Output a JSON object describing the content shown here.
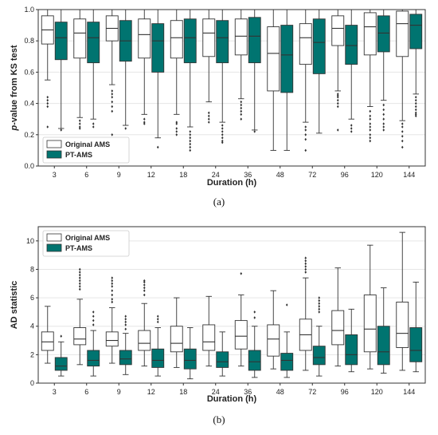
{
  "colors": {
    "original": "#ffffff",
    "pt": "#007470",
    "edge": "#333333",
    "grid": "#e6e6e6"
  },
  "chart_data": [
    {
      "type": "box",
      "panel_label": "(a)",
      "xlabel": "Duration (h)",
      "ylabel_prefix": "p",
      "ylabel_rest": "-value from KS test",
      "ylim": [
        0.0,
        1.0
      ],
      "yticks": [
        0.0,
        0.2,
        0.4,
        0.6,
        0.8,
        1.0
      ],
      "ytick_labels": [
        "0.0",
        "0.2",
        "0.4",
        "0.6",
        "0.8",
        "1.0"
      ],
      "grid": true,
      "legend": "bottom-left",
      "categories": [
        "3",
        "6",
        "9",
        "12",
        "18",
        "24",
        "36",
        "48",
        "72",
        "96",
        "120",
        "144"
      ],
      "series": [
        {
          "name": "Original AMS",
          "boxes": [
            {
              "whislo": 0.55,
              "q1": 0.78,
              "med": 0.87,
              "q3": 0.96,
              "whishi": 1.0,
              "fliers": [
                0.44,
                0.42,
                0.4,
                0.38,
                0.25
              ]
            },
            {
              "whislo": 0.31,
              "q1": 0.69,
              "med": 0.85,
              "q3": 0.94,
              "whishi": 1.0,
              "fliers": [
                0.29,
                0.27,
                0.25,
                0.24
              ]
            },
            {
              "whislo": 0.52,
              "q1": 0.8,
              "med": 0.88,
              "q3": 0.96,
              "whishi": 1.0,
              "fliers": [
                0.48,
                0.46,
                0.44,
                0.41,
                0.38,
                0.35,
                0.2,
                0.17
              ]
            },
            {
              "whislo": 0.33,
              "q1": 0.69,
              "med": 0.84,
              "q3": 0.94,
              "whishi": 1.0,
              "fliers": [
                0.3,
                0.28,
                0.27
              ]
            },
            {
              "whislo": 0.33,
              "q1": 0.69,
              "med": 0.82,
              "q3": 0.93,
              "whishi": 1.0,
              "fliers": [
                0.28,
                0.27,
                0.24,
                0.22,
                0.2
              ]
            },
            {
              "whislo": 0.41,
              "q1": 0.7,
              "med": 0.85,
              "q3": 0.94,
              "whishi": 1.0,
              "fliers": [
                0.34,
                0.32,
                0.3,
                0.28
              ]
            },
            {
              "whislo": 0.43,
              "q1": 0.71,
              "med": 0.83,
              "q3": 0.94,
              "whishi": 1.0,
              "fliers": [
                0.41,
                0.39,
                0.37,
                0.35,
                0.33,
                0.3
              ]
            },
            {
              "whislo": 0.1,
              "q1": 0.48,
              "med": 0.72,
              "q3": 0.89,
              "whishi": 1.0,
              "fliers": []
            },
            {
              "whislo": 0.28,
              "q1": 0.65,
              "med": 0.82,
              "q3": 0.91,
              "whishi": 1.0,
              "fliers": [
                0.25,
                0.23,
                0.2,
                0.17,
                0.1
              ]
            },
            {
              "whislo": 0.48,
              "q1": 0.77,
              "med": 0.88,
              "q3": 0.96,
              "whishi": 1.0,
              "fliers": [
                0.46,
                0.45,
                0.44,
                0.42,
                0.4,
                0.38,
                0.23
              ]
            },
            {
              "whislo": 0.38,
              "q1": 0.71,
              "med": 0.89,
              "q3": 0.98,
              "whishi": 1.0,
              "fliers": [
                0.35,
                0.32,
                0.3,
                0.27,
                0.25,
                0.23,
                0.2,
                0.18,
                0.16
              ]
            },
            {
              "whislo": 0.29,
              "q1": 0.7,
              "med": 0.91,
              "q3": 0.99,
              "whishi": 1.0,
              "fliers": [
                0.27,
                0.25,
                0.22,
                0.19,
                0.16,
                0.12
              ]
            }
          ]
        },
        {
          "name": "PT-AMS",
          "boxes": [
            {
              "whislo": 0.24,
              "q1": 0.68,
              "med": 0.82,
              "q3": 0.92,
              "whishi": 1.0,
              "fliers": [
                0.23
              ]
            },
            {
              "whislo": 0.3,
              "q1": 0.66,
              "med": 0.82,
              "q3": 0.92,
              "whishi": 1.0,
              "fliers": [
                0.27,
                0.25
              ]
            },
            {
              "whislo": 0.26,
              "q1": 0.67,
              "med": 0.8,
              "q3": 0.93,
              "whishi": 1.0,
              "fliers": [
                0.24
              ]
            },
            {
              "whislo": 0.18,
              "q1": 0.6,
              "med": 0.8,
              "q3": 0.91,
              "whishi": 1.0,
              "fliers": [
                0.12
              ]
            },
            {
              "whislo": 0.25,
              "q1": 0.66,
              "med": 0.82,
              "q3": 0.94,
              "whishi": 1.0,
              "fliers": [
                0.22,
                0.2,
                0.18,
                0.16,
                0.14,
                0.12,
                0.1
              ]
            },
            {
              "whislo": 0.28,
              "q1": 0.66,
              "med": 0.82,
              "q3": 0.93,
              "whishi": 1.0,
              "fliers": [
                0.26,
                0.24,
                0.22,
                0.2,
                0.18,
                0.16,
                0.15
              ]
            },
            {
              "whislo": 0.23,
              "q1": 0.66,
              "med": 0.83,
              "q3": 0.95,
              "whishi": 1.0,
              "fliers": [
                0.22
              ]
            },
            {
              "whislo": 0.1,
              "q1": 0.47,
              "med": 0.71,
              "q3": 0.9,
              "whishi": 1.0,
              "fliers": []
            },
            {
              "whislo": 0.21,
              "q1": 0.59,
              "med": 0.79,
              "q3": 0.94,
              "whishi": 1.0,
              "fliers": []
            },
            {
              "whislo": 0.3,
              "q1": 0.65,
              "med": 0.77,
              "q3": 0.9,
              "whishi": 1.0,
              "fliers": [
                0.26,
                0.24,
                0.22
              ]
            },
            {
              "whislo": 0.42,
              "q1": 0.73,
              "med": 0.85,
              "q3": 0.96,
              "whishi": 1.0,
              "fliers": [
                0.39,
                0.36,
                0.33,
                0.3,
                0.27,
                0.25,
                0.23
              ]
            },
            {
              "whislo": 0.46,
              "q1": 0.75,
              "med": 0.9,
              "q3": 0.97,
              "whishi": 1.0,
              "fliers": [
                0.44,
                0.42,
                0.4,
                0.38,
                0.36,
                0.34,
                0.33,
                0.32
              ]
            }
          ]
        }
      ]
    },
    {
      "type": "box",
      "panel_label": "(b)",
      "xlabel": "Duration (h)",
      "ylabel": "AD statistic",
      "ylim": [
        0,
        11
      ],
      "yticks": [
        0,
        2,
        4,
        6,
        8,
        10
      ],
      "ytick_labels": [
        "0",
        "2",
        "4",
        "6",
        "8",
        "10"
      ],
      "grid": true,
      "legend": "top-left",
      "categories": [
        "3",
        "6",
        "9",
        "12",
        "18",
        "24",
        "36",
        "48",
        "72",
        "96",
        "120",
        "144"
      ],
      "series": [
        {
          "name": "Original AMS",
          "boxes": [
            {
              "whislo": 1.4,
              "q1": 2.3,
              "med": 2.9,
              "q3": 3.6,
              "whishi": 5.4,
              "fliers": []
            },
            {
              "whislo": 1.3,
              "q1": 2.7,
              "med": 3.1,
              "q3": 3.9,
              "whishi": 5.9,
              "fliers": [
                6.6,
                6.8,
                7.0,
                7.2,
                7.4,
                7.6,
                7.8,
                8.0
              ]
            },
            {
              "whislo": 1.4,
              "q1": 2.6,
              "med": 3.0,
              "q3": 3.6,
              "whishi": 5.3,
              "fliers": [
                5.7,
                5.9,
                6.2,
                6.5,
                6.8,
                7.0,
                7.2,
                7.4
              ]
            },
            {
              "whislo": 1.2,
              "q1": 2.3,
              "med": 2.8,
              "q3": 3.7,
              "whishi": 5.6,
              "fliers": [
                6.2,
                6.5,
                6.7,
                6.9,
                7.1,
                7.2
              ]
            },
            {
              "whislo": 1.1,
              "q1": 2.2,
              "med": 2.8,
              "q3": 4.0,
              "whishi": 6.0,
              "fliers": []
            },
            {
              "whislo": 1.2,
              "q1": 2.3,
              "med": 2.9,
              "q3": 4.1,
              "whishi": 6.1,
              "fliers": []
            },
            {
              "whislo": 1.2,
              "q1": 2.4,
              "med": 3.3,
              "q3": 4.4,
              "whishi": 6.2,
              "fliers": [
                7.7
              ]
            },
            {
              "whislo": 1.0,
              "q1": 1.9,
              "med": 3.1,
              "q3": 4.1,
              "whishi": 6.5,
              "fliers": []
            },
            {
              "whislo": 0.9,
              "q1": 2.3,
              "med": 3.4,
              "q3": 4.5,
              "whishi": 7.4,
              "fliers": [
                7.8,
                8.0,
                8.2,
                8.4,
                8.6,
                8.8
              ]
            },
            {
              "whislo": 1.2,
              "q1": 2.7,
              "med": 3.7,
              "q3": 5.1,
              "whishi": 8.1,
              "fliers": []
            },
            {
              "whislo": 1.0,
              "q1": 2.2,
              "med": 3.8,
              "q3": 6.2,
              "whishi": 9.7,
              "fliers": []
            },
            {
              "whislo": 0.9,
              "q1": 2.5,
              "med": 3.5,
              "q3": 5.7,
              "whishi": 10.6,
              "fliers": []
            }
          ]
        },
        {
          "name": "PT-AMS",
          "boxes": [
            {
              "whislo": 0.5,
              "q1": 0.9,
              "med": 1.2,
              "q3": 1.8,
              "whishi": 2.9,
              "fliers": [
                3.3
              ]
            },
            {
              "whislo": 0.5,
              "q1": 1.2,
              "med": 1.6,
              "q3": 2.3,
              "whishi": 3.7,
              "fliers": [
                4.1,
                4.4,
                4.7,
                5.0
              ]
            },
            {
              "whislo": 0.6,
              "q1": 1.3,
              "med": 1.7,
              "q3": 2.3,
              "whishi": 3.5,
              "fliers": [
                3.8,
                4.1,
                4.3,
                4.5,
                4.7
              ]
            },
            {
              "whislo": 0.5,
              "q1": 1.1,
              "med": 1.6,
              "q3": 2.4,
              "whishi": 3.9,
              "fliers": [
                4.3,
                4.5,
                4.7
              ]
            },
            {
              "whislo": 0.3,
              "q1": 1.0,
              "med": 1.6,
              "q3": 2.4,
              "whishi": 3.9,
              "fliers": []
            },
            {
              "whislo": 0.5,
              "q1": 1.1,
              "med": 1.5,
              "q3": 2.2,
              "whishi": 3.6,
              "fliers": []
            },
            {
              "whislo": 0.4,
              "q1": 0.9,
              "med": 1.5,
              "q3": 2.3,
              "whishi": 4.0,
              "fliers": [
                4.6,
                5.0
              ]
            },
            {
              "whislo": 0.4,
              "q1": 0.9,
              "med": 1.6,
              "q3": 2.1,
              "whishi": 3.6,
              "fliers": [
                5.5
              ]
            },
            {
              "whislo": 0.5,
              "q1": 1.3,
              "med": 1.8,
              "q3": 2.6,
              "whishi": 4.0,
              "fliers": [
                5.0,
                5.2,
                5.4,
                5.6,
                5.8,
                6.0
              ]
            },
            {
              "whislo": 0.8,
              "q1": 1.3,
              "med": 2.0,
              "q3": 3.4,
              "whishi": 5.2,
              "fliers": []
            },
            {
              "whislo": 0.7,
              "q1": 1.3,
              "med": 2.2,
              "q3": 4.0,
              "whishi": 6.7,
              "fliers": []
            },
            {
              "whislo": 0.8,
              "q1": 1.5,
              "med": 2.3,
              "q3": 3.9,
              "whishi": 7.1,
              "fliers": []
            }
          ]
        }
      ]
    }
  ]
}
